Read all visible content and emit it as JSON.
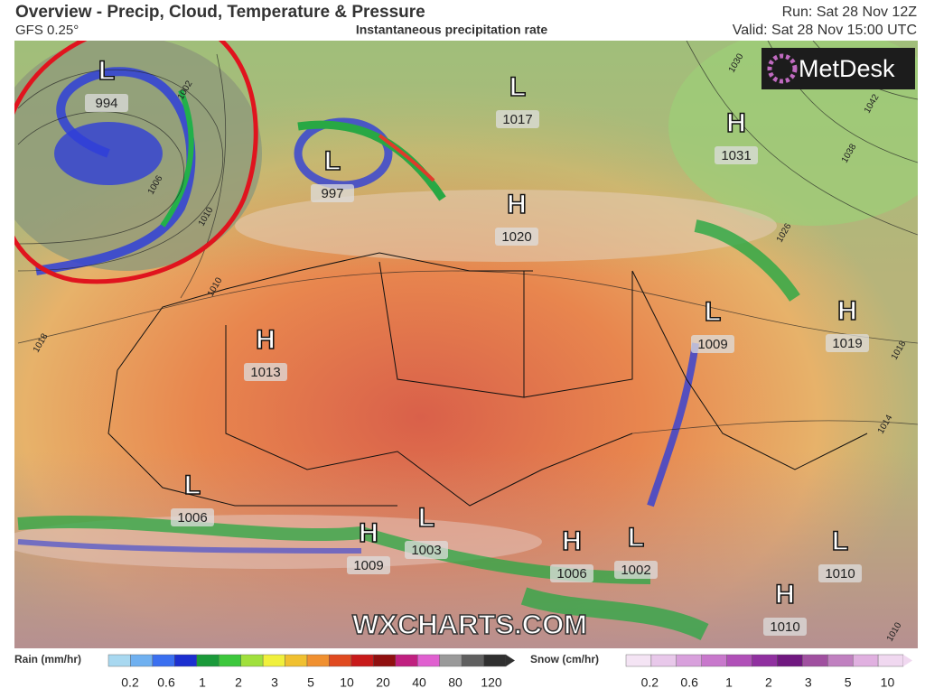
{
  "header": {
    "title": "Overview - Precip, Cloud, Temperature & Pressure",
    "model": "GFS 0.25°",
    "subtitle": "Instantaneous precipitation rate",
    "run": "Run: Sat 28 Nov 12Z",
    "valid": "Valid: Sat 28 Nov 15:00 UTC"
  },
  "logo": "MetDesk",
  "watermark": "WXCHARTS.COM",
  "centers": [
    {
      "kind": "L",
      "pressure": 994
    },
    {
      "kind": "L",
      "pressure": 997
    },
    {
      "kind": "L",
      "pressure": 1017
    },
    {
      "kind": "H",
      "pressure": 1020
    },
    {
      "kind": "H",
      "pressure": 1031
    },
    {
      "kind": "H",
      "pressure": 1013
    },
    {
      "kind": "L",
      "pressure": 1009
    },
    {
      "kind": "H",
      "pressure": 1019
    },
    {
      "kind": "L",
      "pressure": 1006
    },
    {
      "kind": "H",
      "pressure": 1009
    },
    {
      "kind": "L",
      "pressure": 1003
    },
    {
      "kind": "H",
      "pressure": 1006
    },
    {
      "kind": "L",
      "pressure": 1002
    },
    {
      "kind": "L",
      "pressure": 1010
    },
    {
      "kind": "H",
      "pressure": 1010
    }
  ],
  "isobar_labels": [
    1002,
    1006,
    1010,
    1010,
    1018,
    1018,
    1014,
    1026,
    1030,
    1042,
    1038,
    1010
  ],
  "rain_legend": {
    "label": "Rain (mm/hr)",
    "ticks": [
      0.2,
      0.6,
      1,
      2,
      3,
      5,
      10,
      20,
      40,
      80,
      120
    ]
  },
  "snow_legend": {
    "label": "Snow (cm/hr)",
    "ticks": [
      0.2,
      0.6,
      1,
      2,
      3,
      5,
      10
    ]
  }
}
